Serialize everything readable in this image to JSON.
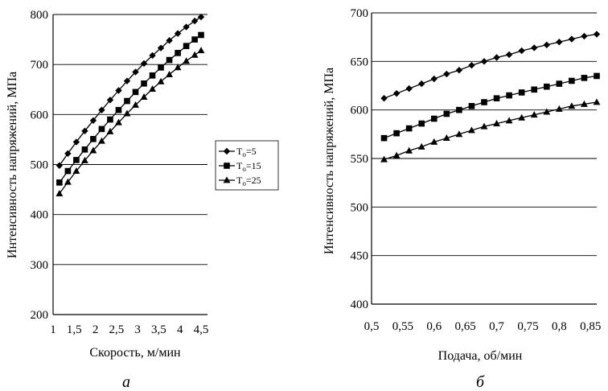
{
  "chart_data": [
    {
      "type": "line",
      "panel_label": "а",
      "xlabel": "Скорость, м/мин",
      "ylabel": "Интенсивность напряжений, МПа",
      "xlim": [
        1,
        4.5
      ],
      "ylim": [
        200,
        800
      ],
      "x_ticks": [
        1,
        1.5,
        2,
        2.5,
        3,
        3.5,
        4,
        4.5
      ],
      "x_tick_labels": [
        "1",
        "1,5",
        "2",
        "2,5",
        "3",
        "3,5",
        "4",
        "4,5"
      ],
      "y_ticks": [
        200,
        300,
        400,
        500,
        600,
        700,
        800
      ],
      "y_tick_labels": [
        "200",
        "300",
        "400",
        "500",
        "600",
        "700",
        "800"
      ],
      "grid": "horizontal",
      "legend_position": "right",
      "x": [
        1.15,
        1.35,
        1.55,
        1.75,
        1.95,
        2.15,
        2.35,
        2.55,
        2.75,
        2.95,
        3.15,
        3.35,
        3.55,
        3.75,
        3.95,
        4.15,
        4.35,
        4.5
      ],
      "series": [
        {
          "name_main": "T",
          "name_sub": "o",
          "name_tail": "=5",
          "marker": "diamond",
          "values": [
            498,
            522,
            545,
            567,
            588,
            609,
            629,
            648,
            667,
            685,
            702,
            718,
            733,
            748,
            762,
            775,
            787,
            795
          ]
        },
        {
          "name_main": "T",
          "name_sub": "o",
          "name_tail": "=15",
          "marker": "square",
          "values": [
            464,
            487,
            509,
            530,
            551,
            571,
            590,
            609,
            627,
            645,
            662,
            678,
            694,
            709,
            723,
            737,
            750,
            759
          ]
        },
        {
          "name_main": "T",
          "name_sub": "o",
          "name_tail": "=25",
          "marker": "triangle",
          "values": [
            442,
            465,
            487,
            508,
            528,
            547,
            566,
            584,
            602,
            619,
            635,
            651,
            666,
            680,
            694,
            707,
            719,
            728
          ]
        }
      ]
    },
    {
      "type": "line",
      "panel_label": "б",
      "xlabel": "Подача, об/мин",
      "ylabel": "Интенсивность напряжений, МПа",
      "xlim": [
        0.5,
        0.86
      ],
      "ylim": [
        400,
        700
      ],
      "x_ticks": [
        0.5,
        0.55,
        0.6,
        0.65,
        0.7,
        0.75,
        0.8,
        0.85
      ],
      "x_tick_labels": [
        "0,5",
        "0,55",
        "0,6",
        "0,65",
        "0,7",
        "0,75",
        "0,8",
        "0,85"
      ],
      "y_ticks": [
        400,
        450,
        500,
        550,
        600,
        650,
        700
      ],
      "y_tick_labels": [
        "400",
        "450",
        "500",
        "550",
        "600",
        "650",
        "700"
      ],
      "grid": "horizontal",
      "x": [
        0.52,
        0.54,
        0.56,
        0.58,
        0.6,
        0.62,
        0.64,
        0.66,
        0.68,
        0.7,
        0.72,
        0.74,
        0.76,
        0.78,
        0.8,
        0.82,
        0.84,
        0.86
      ],
      "series": [
        {
          "marker": "diamond",
          "values": [
            612,
            617,
            622,
            627,
            632,
            637,
            641,
            646,
            650,
            654,
            657,
            661,
            664,
            667,
            670,
            673,
            676,
            678
          ]
        },
        {
          "marker": "square",
          "values": [
            571,
            576,
            581,
            586,
            591,
            596,
            600,
            604,
            608,
            612,
            615,
            618,
            621,
            624,
            627,
            630,
            633,
            635
          ]
        },
        {
          "marker": "triangle",
          "values": [
            549,
            553,
            558,
            562,
            567,
            571,
            575,
            579,
            583,
            586,
            589,
            592,
            595,
            598,
            601,
            604,
            606,
            608
          ]
        }
      ]
    }
  ]
}
